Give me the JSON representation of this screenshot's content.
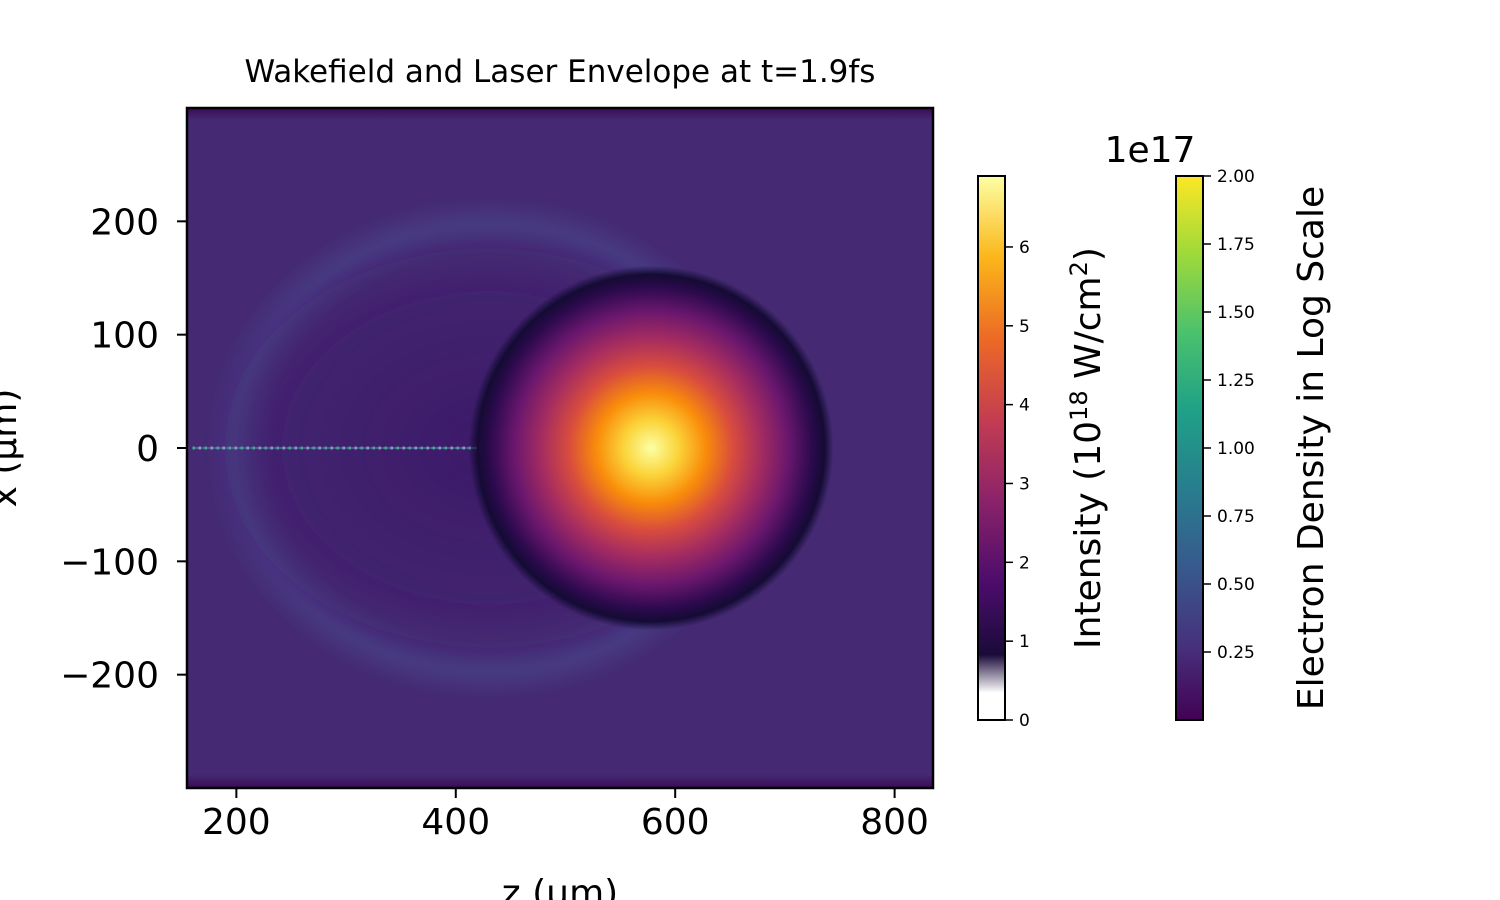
{
  "chart_data": [
    {
      "type": "heatmap",
      "title": "Wakefield and Laser Envelope at t=1.9fs",
      "xlabel": "z (μm)",
      "ylabel": "x (μm)",
      "xlim": [
        155,
        835
      ],
      "ylim": [
        -300,
        300
      ],
      "x_ticks": [
        200,
        400,
        600,
        800
      ],
      "x_tick_labels": [
        "200",
        "400",
        "600",
        "800"
      ],
      "y_ticks": [
        200,
        100,
        0,
        -100,
        -200
      ],
      "y_tick_labels": [
        "200",
        "100",
        "0",
        "−100",
        "−200"
      ],
      "layers": [
        {
          "name": "Electron Density in Log Scale",
          "colormap": "viridis",
          "background_value": 0.1,
          "features": [
            {
              "kind": "bubble-cavity",
              "center": [
                430,
                0
              ],
              "radii": [
                260,
                190
              ],
              "value": 0.02
            },
            {
              "kind": "sheath-ring",
              "center": [
                430,
                0
              ],
              "radii": [
                245,
                200
              ],
              "value": 0.3
            },
            {
              "kind": "on-axis-beam",
              "x_range": [
                160,
                520
              ],
              "x_value": 0,
              "value": 1.0
            },
            {
              "kind": "edge-depletion",
              "y_values": [
                -300,
                300
              ],
              "value": 0.02
            }
          ]
        },
        {
          "name": "Laser Intensity",
          "colormap": "inferno",
          "center": [
            578,
            0
          ],
          "radius_um": 140,
          "peak_value": 6.9
        }
      ],
      "colorbars": [
        {
          "label": "Intensity",
          "colormap": "inferno (transparent near 0)",
          "range": [
            0,
            6.9
          ],
          "ticks": [
            0,
            1,
            2,
            3,
            4,
            5,
            6
          ],
          "tick_labels": [
            "0",
            "1",
            "2",
            "3",
            "4",
            "5",
            "6"
          ],
          "label_parts": {
            "prefix": "Intensity (10",
            "sup1": "18",
            "mid": " W/cm",
            "sup2": "2",
            "suffix": ")"
          }
        },
        {
          "label": "Electron Density in Log Scale",
          "colormap": "viridis",
          "range": [
            0,
            2.0
          ],
          "offset_text": "1e17",
          "ticks": [
            0.25,
            0.5,
            0.75,
            1.0,
            1.25,
            1.5,
            1.75,
            2.0
          ],
          "tick_labels": [
            "0.25",
            "0.50",
            "0.75",
            "1.00",
            "1.25",
            "1.50",
            "1.75",
            "2.00"
          ]
        }
      ]
    }
  ]
}
